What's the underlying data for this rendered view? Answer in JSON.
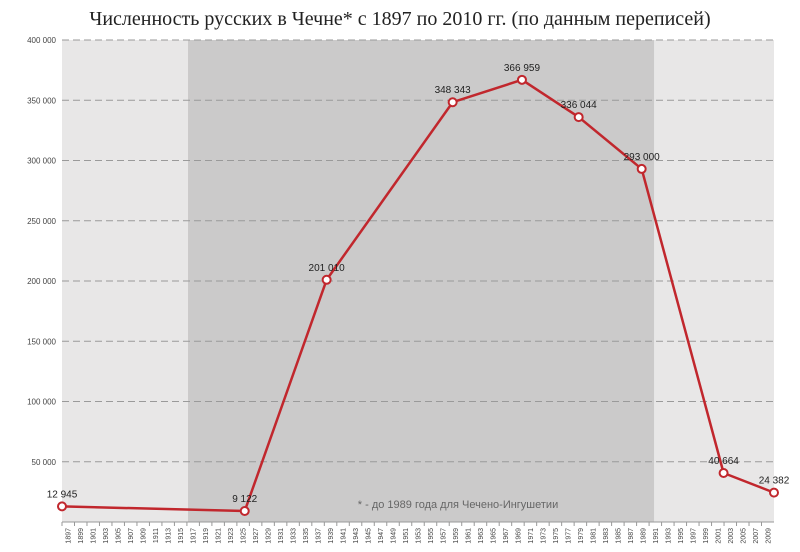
{
  "title": "Численность русских в Чечне* с 1897 по 2010 гг. (по данным переписей)",
  "footnote": "* - до 1989 года для Чечено-Ингушетии",
  "colors": {
    "line": "#c1272d",
    "marker_fill": "#ffffff",
    "bg_light": "#e8e7e7",
    "bg_dark": "#cbcaca",
    "grid": "#9a9a9a"
  },
  "chart_data": {
    "type": "line",
    "title": "Численность русских в Чечне* с 1897 по 2010 гг. (по данным переписей)",
    "xlim": [
      1897,
      2010
    ],
    "ylim": [
      0,
      400000
    ],
    "y_ticks": [
      {
        "value": 50000,
        "label": "50 000"
      },
      {
        "value": 100000,
        "label": "100 000"
      },
      {
        "value": 150000,
        "label": "150 000"
      },
      {
        "value": 200000,
        "label": "200 000"
      },
      {
        "value": 250000,
        "label": "250 000"
      },
      {
        "value": 300000,
        "label": "300 000"
      },
      {
        "value": 350000,
        "label": "350 000"
      },
      {
        "value": 400000,
        "label": "400 000"
      }
    ],
    "x_tick_labels": [
      "1897",
      "1899",
      "1901",
      "1903",
      "1905",
      "1907",
      "1909",
      "1911",
      "1913",
      "1915",
      "1917",
      "1919",
      "1921",
      "1923",
      "1925",
      "1927",
      "1929",
      "1931",
      "1933",
      "1935",
      "1937",
      "1939",
      "1941",
      "1943",
      "1945",
      "1947",
      "1949",
      "1951",
      "1953",
      "1955",
      "1957",
      "1959",
      "1961",
      "1963",
      "1965",
      "1967",
      "1969",
      "1971",
      "1973",
      "1975",
      "1977",
      "1979",
      "1981",
      "1983",
      "1985",
      "1987",
      "1989",
      "1991",
      "1993",
      "1995",
      "1997",
      "1999",
      "2001",
      "2003",
      "2005",
      "2007",
      "2009"
    ],
    "shaded_period": [
      1917,
      1991
    ],
    "grid": true,
    "grid_style": "dashed",
    "points": [
      {
        "x": 1897,
        "y": 12945,
        "label": "12 945"
      },
      {
        "x": 1926,
        "y": 9122,
        "label": "9 122"
      },
      {
        "x": 1939,
        "y": 201010,
        "label": "201 010"
      },
      {
        "x": 1959,
        "y": 348343,
        "label": "348 343"
      },
      {
        "x": 1970,
        "y": 366959,
        "label": "366 959"
      },
      {
        "x": 1979,
        "y": 336044,
        "label": "336 044"
      },
      {
        "x": 1989,
        "y": 293000,
        "label": "293 000"
      },
      {
        "x": 2002,
        "y": 40664,
        "label": "40 664"
      },
      {
        "x": 2010,
        "y": 24382,
        "label": "24 382"
      }
    ]
  }
}
